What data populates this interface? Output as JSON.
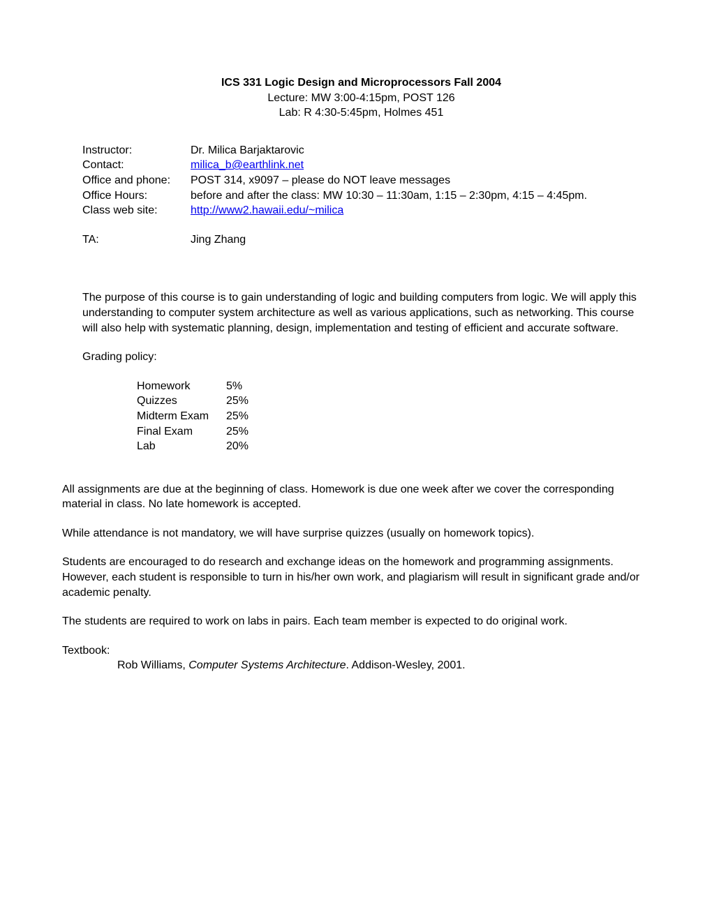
{
  "header": {
    "course_title": "ICS 331 Logic Design and Microprocessors Fall 2004",
    "lecture": "Lecture: MW 3:00-4:15pm, POST 126",
    "lab": "Lab: R 4:30-5:45pm, Holmes 451"
  },
  "info": {
    "instructor_label": "Instructor:",
    "instructor_value": "Dr. Milica Barjaktarovic",
    "contact_label": "Contact:",
    "contact_value": "milica_b@earthlink.net",
    "office_phone_label": "Office and phone:",
    "office_phone_value": "POST 314, x9097 – please do NOT leave messages",
    "office_hours_label": "Office Hours:",
    "office_hours_value": "before and after the class: MW 10:30 – 11:30am, 1:15 – 2:30pm, 4:15 – 4:45pm.",
    "website_label": "Class web site:",
    "website_value": "http://www2.hawaii.edu/~milica",
    "ta_label": "TA:",
    "ta_value": "Jing Zhang"
  },
  "description": "The purpose of this course is to gain understanding of logic and building computers from logic. We will apply this understanding to computer system architecture as well as various applications, such as networking. This course will also help with systematic planning, design, implementation and testing of efficient and accurate software.",
  "grading": {
    "label": "Grading policy:",
    "items": [
      {
        "name": "Homework",
        "percent": "5%"
      },
      {
        "name": "Quizzes",
        "percent": "25%"
      },
      {
        "name": "Midterm Exam",
        "percent": "25%"
      },
      {
        "name": "Final Exam",
        "percent": "25%"
      },
      {
        "name": "Lab",
        "percent": "20%"
      }
    ]
  },
  "paragraphs": {
    "p1": "All assignments are due at the beginning of class. Homework is due one week after we cover the corresponding material in class. No late homework is accepted.",
    "p2": "While attendance is not mandatory, we will have surprise quizzes (usually on homework topics).",
    "p3": "Students are encouraged to do research and exchange ideas on the homework and programming assignments. However, each student is responsible to turn in his/her own work, and plagiarism will result in significant grade and/or academic penalty.",
    "p4": "The students are required to work on labs in pairs. Each team member is expected to do original work."
  },
  "textbook": {
    "label": "Textbook:",
    "author": "Rob Williams, ",
    "title": "Computer Systems Architecture",
    "publisher": ". Addison-Wesley, 2001."
  },
  "styling": {
    "font_family": "Arial",
    "base_font_size": 16,
    "link_color": "#0000EE",
    "text_color": "#000000",
    "background_color": "#ffffff"
  }
}
